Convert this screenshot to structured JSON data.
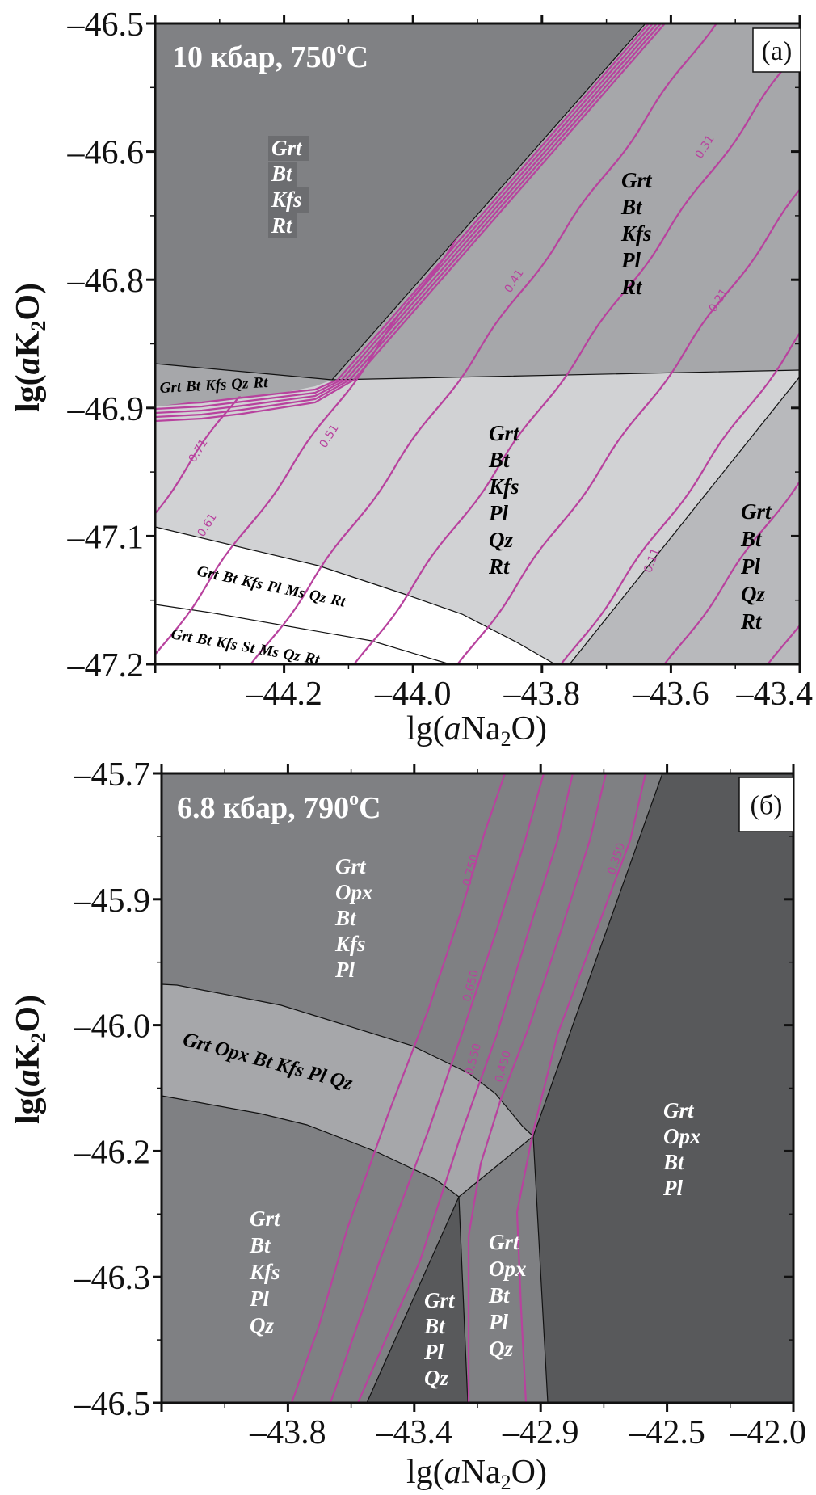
{
  "chart_data": [
    {
      "type": "area",
      "panel_label": "(a)",
      "title": {
        "main": "10 кбар, 750",
        "sup": "o",
        "unit": "C"
      },
      "xlabel": {
        "pre": "lg(",
        "italic": "a",
        "species": "Na",
        "sub": "2",
        "post": "O)"
      },
      "ylabel": {
        "pre": "lg(",
        "italic": "a",
        "species": "K",
        "sub": "2",
        "post": "O)"
      },
      "xlim": [
        -44.4,
        -43.4
      ],
      "ylim": [
        -47.2,
        -46.5
      ],
      "xticks": [
        "–44.2",
        "–44.0",
        "–43.8",
        "–43.6",
        "–43.4"
      ],
      "yticks": [
        "–46.5",
        "–46.6",
        "–46.8",
        "–46.9",
        "–47.1",
        "–47.2"
      ],
      "grid": false,
      "fields": [
        {
          "minerals": [
            "Grt",
            "Bt",
            "Kfs",
            "Rt"
          ]
        },
        {
          "minerals": [
            "Grt",
            "Bt",
            "Kfs",
            "Pl",
            "Rt"
          ]
        },
        {
          "minerals": [
            "Grt",
            "Bt",
            "Kfs",
            "Qz",
            "Rt"
          ]
        },
        {
          "minerals": [
            "Grt",
            "Bt",
            "Kfs",
            "Pl",
            "Qz",
            "Rt"
          ]
        },
        {
          "minerals": [
            "Grt",
            "Bt",
            "Pl",
            "Qz",
            "Rt"
          ]
        },
        {
          "minerals": [
            "Grt",
            "Bt",
            "Kfs",
            "Pl",
            "Ms",
            "Qz",
            "Rt"
          ]
        },
        {
          "minerals": [
            "Grt",
            "Bt",
            "Kfs",
            "St",
            "Ms",
            "Qz",
            "Rt"
          ]
        }
      ],
      "isopleths": [
        "0.71",
        "0.61",
        "0.51",
        "0.41",
        "0.31",
        "0.21",
        "0.11"
      ],
      "colors": {
        "isopleth": "#b8429e"
      }
    },
    {
      "type": "area",
      "panel_label": "(б)",
      "title": {
        "main": "6.8 кбар, 790",
        "sup": "o",
        "unit": "C"
      },
      "xlabel": {
        "pre": "lg(",
        "italic": "a",
        "species": "Na",
        "sub": "2",
        "post": "O)"
      },
      "ylabel": {
        "pre": "lg(",
        "italic": "a",
        "species": "K",
        "sub": "2",
        "post": "O)"
      },
      "xlim": [
        -44.2,
        -42.0
      ],
      "ylim": [
        -46.5,
        -45.7
      ],
      "xticks": [
        "–43.8",
        "–43.4",
        "–42.9",
        "–42.5",
        "–42.0"
      ],
      "yticks": [
        "–45.7",
        "–45.9",
        "–46.0",
        "–46.2",
        "–46.3",
        "–46.5"
      ],
      "grid": false,
      "fields": [
        {
          "minerals": [
            "Grt",
            "Opx",
            "Bt",
            "Kfs",
            "Pl"
          ]
        },
        {
          "minerals": [
            "Grt",
            "Opx",
            "Bt",
            "Kfs",
            "Pl",
            "Qz"
          ]
        },
        {
          "minerals": [
            "Grt",
            "Opx",
            "Bt",
            "Pl"
          ]
        },
        {
          "minerals": [
            "Grt",
            "Bt",
            "Kfs",
            "Pl",
            "Qz"
          ]
        },
        {
          "minerals": [
            "Grt",
            "Bt",
            "Pl",
            "Qz"
          ]
        },
        {
          "minerals": [
            "Grt",
            "Opx",
            "Bt",
            "Pl",
            "Qz"
          ]
        }
      ],
      "isopleths": [
        "0.750",
        "0.650",
        "0.550",
        "0.450",
        "0.350"
      ],
      "colors": {
        "isopleth": "#b8429e"
      }
    }
  ]
}
